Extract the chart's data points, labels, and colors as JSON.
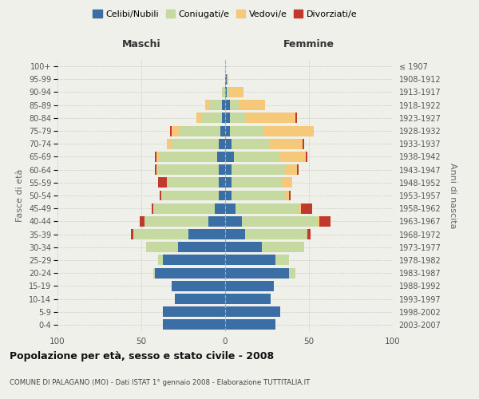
{
  "age_groups": [
    "0-4",
    "5-9",
    "10-14",
    "15-19",
    "20-24",
    "25-29",
    "30-34",
    "35-39",
    "40-44",
    "45-49",
    "50-54",
    "55-59",
    "60-64",
    "65-69",
    "70-74",
    "75-79",
    "80-84",
    "85-89",
    "90-94",
    "95-99",
    "100+"
  ],
  "birth_years": [
    "2003-2007",
    "1998-2002",
    "1993-1997",
    "1988-1992",
    "1983-1987",
    "1978-1982",
    "1973-1977",
    "1968-1972",
    "1963-1967",
    "1958-1962",
    "1953-1957",
    "1948-1952",
    "1943-1947",
    "1938-1942",
    "1933-1937",
    "1928-1932",
    "1923-1927",
    "1918-1922",
    "1913-1917",
    "1908-1912",
    "≤ 1907"
  ],
  "male": {
    "celibi": [
      37,
      37,
      30,
      32,
      42,
      37,
      28,
      22,
      10,
      6,
      4,
      4,
      4,
      5,
      4,
      3,
      2,
      2,
      0,
      0,
      0
    ],
    "coniugati": [
      0,
      0,
      0,
      0,
      1,
      3,
      19,
      33,
      38,
      37,
      34,
      31,
      36,
      34,
      28,
      24,
      12,
      7,
      2,
      0,
      0
    ],
    "vedovi": [
      0,
      0,
      0,
      0,
      0,
      0,
      0,
      0,
      0,
      0,
      0,
      0,
      1,
      2,
      3,
      5,
      3,
      3,
      0,
      0,
      0
    ],
    "divorziati": [
      0,
      0,
      0,
      0,
      0,
      0,
      0,
      1,
      3,
      1,
      1,
      5,
      1,
      1,
      0,
      1,
      0,
      0,
      0,
      0,
      0
    ]
  },
  "female": {
    "nubili": [
      30,
      33,
      27,
      29,
      38,
      30,
      22,
      12,
      10,
      6,
      4,
      4,
      4,
      5,
      4,
      3,
      3,
      3,
      1,
      1,
      0
    ],
    "coniugate": [
      0,
      0,
      0,
      0,
      4,
      8,
      25,
      37,
      45,
      38,
      32,
      30,
      32,
      28,
      22,
      20,
      9,
      5,
      2,
      0,
      0
    ],
    "vedove": [
      0,
      0,
      0,
      0,
      0,
      0,
      0,
      0,
      1,
      1,
      2,
      6,
      7,
      15,
      20,
      30,
      30,
      16,
      8,
      1,
      0
    ],
    "divorziate": [
      0,
      0,
      0,
      0,
      0,
      0,
      0,
      2,
      7,
      7,
      1,
      0,
      1,
      1,
      1,
      0,
      1,
      0,
      0,
      0,
      0
    ]
  },
  "colors": {
    "celibi": "#3a6ea5",
    "coniugati": "#c5d9a0",
    "vedovi": "#f5c87a",
    "divorziati": "#c0392b"
  },
  "title": "Popolazione per età, sesso e stato civile - 2008",
  "subtitle": "COMUNE DI PALAGANO (MO) - Dati ISTAT 1° gennaio 2008 - Elaborazione TUTTITALIA.IT",
  "xlabel_left": "Maschi",
  "xlabel_right": "Femmine",
  "ylabel_left": "Fasce di età",
  "ylabel_right": "Anni di nascita",
  "xlim": 100,
  "legend_labels": [
    "Celibi/Nubili",
    "Coniugati/e",
    "Vedovi/e",
    "Divorziati/e"
  ],
  "background_color": "#f0f0eb"
}
